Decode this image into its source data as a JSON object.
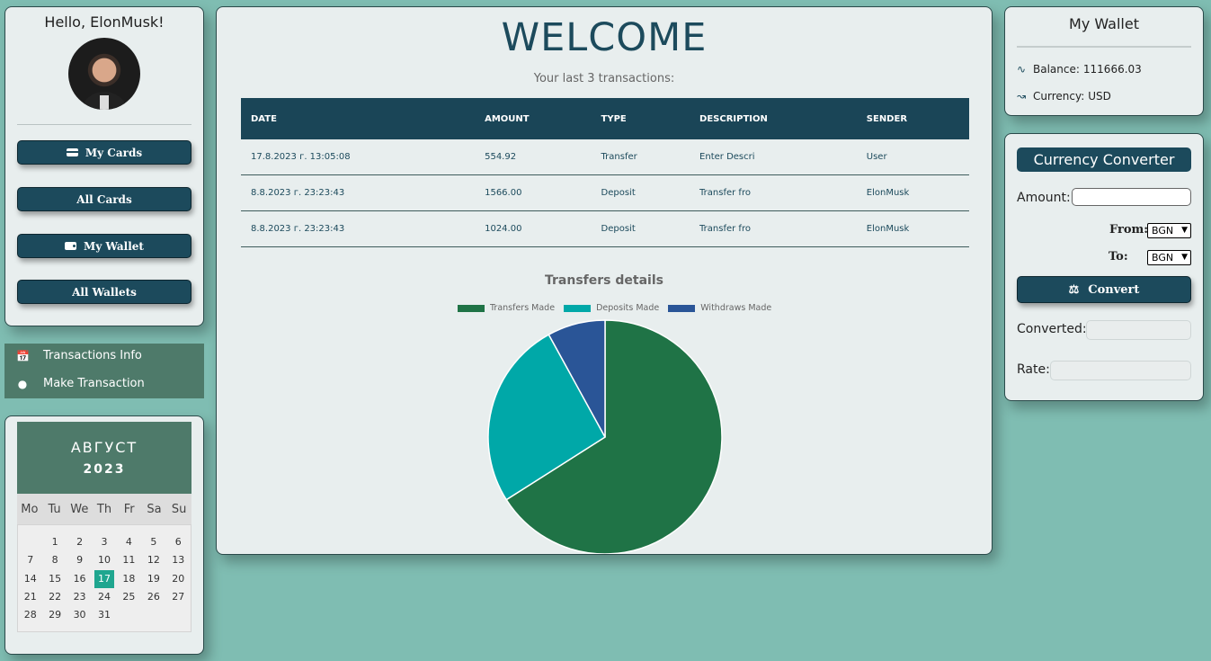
{
  "profile": {
    "greeting": "Hello, ElonMusk!",
    "buttons": [
      {
        "label": "My Cards",
        "icon": "credit-card-icon"
      },
      {
        "label": "All Cards",
        "icon": ""
      },
      {
        "label": "My Wallet",
        "icon": "wallet-icon"
      },
      {
        "label": "All Wallets",
        "icon": ""
      }
    ]
  },
  "nav": {
    "items": [
      {
        "label": "Transactions Info",
        "icon": "calendar-check-icon"
      },
      {
        "label": "Make Transaction",
        "icon": "coins-icon"
      }
    ]
  },
  "calendar": {
    "month": "АВГУСТ",
    "year": "2023",
    "weekdays": [
      "Mo",
      "Tu",
      "We",
      "Th",
      "Fr",
      "Sa",
      "Su"
    ],
    "first_weekday_offset": 1,
    "days_in_month": 31,
    "today": 17
  },
  "main": {
    "title": "WELCOME",
    "subtitle": "Your last 3 transactions:",
    "table": {
      "headers": [
        "DATE",
        "AMOUNT",
        "TYPE",
        "DESCRIPTION",
        "SENDER"
      ],
      "rows": [
        [
          "17.8.2023 г. 13:05:08",
          "554.92",
          "Transfer",
          "Enter Descri",
          "User"
        ],
        [
          "8.8.2023 г. 23:23:43",
          "1566.00",
          "Deposit",
          "Transfer fro",
          "ElonMusk"
        ],
        [
          "8.8.2023 г. 23:23:43",
          "1024.00",
          "Deposit",
          "Transfer fro",
          "ElonMusk"
        ]
      ]
    }
  },
  "chart_data": {
    "type": "pie",
    "title": "Transfers details",
    "legend_position": "top",
    "categories": [
      "Transfers Made",
      "Deposits Made",
      "Withdraws Made"
    ],
    "values": [
      66,
      26,
      8
    ],
    "colors": [
      "#1f7346",
      "#00a8a8",
      "#2a5597"
    ]
  },
  "wallet": {
    "title": "My Wallet",
    "balance_label": "Balance:",
    "balance_value": "111666.03",
    "currency_label": "Currency:",
    "currency_value": "USD",
    "icons": [
      "signature-icon",
      "line-chart-icon"
    ]
  },
  "converter": {
    "title": "Currency Converter",
    "amount_label": "Amount:",
    "amount_value": "",
    "from_label": "From:",
    "from_value": "BGN",
    "to_label": "To:",
    "to_value": "BGN",
    "convert_label": "Convert",
    "converted_label": "Converted:",
    "converted_value": "",
    "rate_label": "Rate:",
    "rate_value": ""
  },
  "colors": {
    "background": "#7fbdb2",
    "accent": "#1c4a5c",
    "nav_green": "#4e7a6a",
    "today": "#1fa68f"
  }
}
